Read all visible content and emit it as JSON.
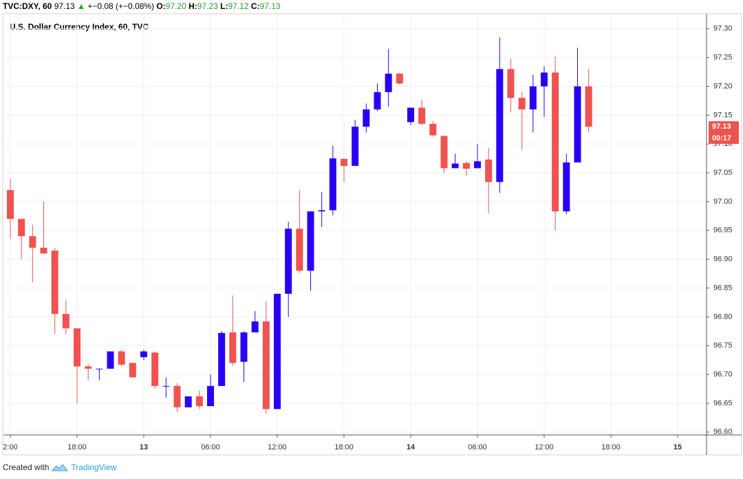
{
  "header": {
    "symbol": "TVC:DXY, 60",
    "last": "97.13",
    "arrow": "▲",
    "change": "+−0.08 (+−0.08%)",
    "o_label": "O:",
    "open": "97.20",
    "h_label": "H:",
    "high": "97.23",
    "l_label": "L:",
    "low": "97.12",
    "c_label": "C:",
    "close": "97.13",
    "price_tag": "97.13",
    "countdown": "00:17"
  },
  "footer": {
    "created": "Created with",
    "brand": "TradingView"
  },
  "chart_data": {
    "type": "candlestick",
    "title": "U.S. Dollar Currency Index, 60, TVC",
    "up_color": "#2a00f5",
    "down_color": "#ef5350",
    "grid": true,
    "x": [
      0,
      1,
      2,
      3,
      4,
      5,
      6,
      7,
      8,
      9,
      10,
      11,
      12,
      13,
      14,
      15,
      16,
      17,
      18,
      19,
      20,
      21,
      22,
      23,
      24,
      25,
      26,
      27,
      28,
      29,
      30,
      31,
      32,
      33,
      34,
      35,
      36,
      37,
      38,
      39,
      40,
      41,
      42,
      43,
      44,
      45,
      46,
      47,
      48,
      49,
      50,
      51,
      52
    ],
    "open": [
      97.02,
      96.97,
      96.94,
      96.92,
      96.915,
      96.805,
      96.78,
      96.714,
      96.71,
      96.71,
      96.74,
      96.72,
      96.73,
      96.738,
      96.68,
      96.68,
      96.643,
      96.662,
      96.645,
      96.68,
      96.773,
      96.722,
      96.773,
      96.792,
      96.64,
      96.84,
      96.953,
      96.88,
      96.983,
      96.985,
      97.074,
      97.062,
      97.13,
      97.16,
      97.19,
      97.222,
      97.138,
      97.163,
      97.135,
      97.114,
      97.058,
      97.067,
      97.058,
      97.073,
      97.034,
      97.23,
      97.18,
      97.16,
      97.2,
      97.224,
      96.983,
      97.068,
      97.2
    ],
    "high": [
      97.04,
      96.97,
      96.96,
      97.0,
      96.92,
      96.83,
      96.78,
      96.718,
      96.71,
      96.74,
      96.743,
      96.72,
      96.743,
      96.74,
      96.695,
      96.685,
      96.662,
      96.672,
      96.7,
      96.775,
      96.837,
      96.775,
      96.81,
      96.827,
      96.84,
      96.965,
      97.02,
      96.983,
      97.017,
      97.097,
      97.076,
      97.142,
      97.17,
      97.205,
      97.265,
      97.223,
      97.163,
      97.177,
      97.14,
      97.114,
      97.083,
      97.07,
      97.1,
      97.093,
      97.285,
      97.248,
      97.19,
      97.22,
      97.235,
      97.252,
      97.083,
      97.267,
      97.23
    ],
    "low": [
      96.935,
      96.9,
      96.86,
      96.91,
      96.77,
      96.77,
      96.65,
      96.69,
      96.69,
      96.71,
      96.715,
      96.695,
      96.725,
      96.675,
      96.66,
      96.635,
      96.643,
      96.64,
      96.645,
      96.68,
      96.715,
      96.687,
      96.773,
      96.632,
      96.64,
      96.8,
      96.876,
      96.845,
      96.956,
      96.976,
      97.034,
      97.062,
      97.12,
      97.157,
      97.165,
      97.203,
      97.133,
      97.133,
      97.113,
      97.05,
      97.058,
      97.045,
      97.058,
      96.98,
      97.015,
      97.155,
      97.09,
      97.12,
      97.147,
      96.95,
      96.978,
      97.068,
      97.12
    ],
    "close": [
      96.97,
      96.94,
      96.92,
      96.91,
      96.805,
      96.78,
      96.714,
      96.71,
      96.71,
      96.74,
      96.717,
      96.695,
      96.74,
      96.68,
      96.68,
      96.643,
      96.662,
      96.645,
      96.68,
      96.772,
      96.72,
      96.773,
      96.792,
      96.64,
      96.84,
      96.953,
      96.88,
      96.983,
      96.985,
      97.075,
      97.062,
      97.13,
      97.16,
      97.19,
      97.222,
      97.205,
      97.163,
      97.135,
      97.115,
      97.058,
      97.066,
      97.057,
      97.07,
      97.034,
      97.23,
      97.18,
      97.16,
      97.2,
      97.224,
      96.983,
      97.068,
      97.2,
      97.13
    ],
    "xlim": [
      -0.62,
      62.6
    ],
    "xticks": [
      {
        "value": 0,
        "label": "2:00"
      },
      {
        "value": 6,
        "label": "18:00"
      },
      {
        "value": 12,
        "label": "13"
      },
      {
        "value": 18,
        "label": "06:00"
      },
      {
        "value": 24,
        "label": "12:00"
      },
      {
        "value": 30,
        "label": "18:00"
      },
      {
        "value": 36,
        "label": "14"
      },
      {
        "value": 42,
        "label": "06:00"
      },
      {
        "value": 48,
        "label": "12:00"
      },
      {
        "value": 54,
        "label": "18:00"
      },
      {
        "value": 60,
        "label": "15"
      }
    ],
    "ylim": [
      96.595,
      97.326
    ],
    "yticks": [
      {
        "value": 96.6,
        "label": "96.60"
      },
      96.65,
      {
        "value": 96.7,
        "label": "96.70"
      },
      96.75,
      {
        "value": 96.8,
        "label": "96.80"
      },
      96.85,
      {
        "value": 96.9,
        "label": "96.90"
      },
      96.95,
      {
        "value": 97.0,
        "label": "97.00"
      },
      97.05,
      {
        "value": 97.1,
        "label": "97.10"
      },
      97.15,
      {
        "value": 97.2,
        "label": "97.20"
      },
      97.25,
      {
        "value": 97.3,
        "label": "97.30"
      }
    ]
  }
}
